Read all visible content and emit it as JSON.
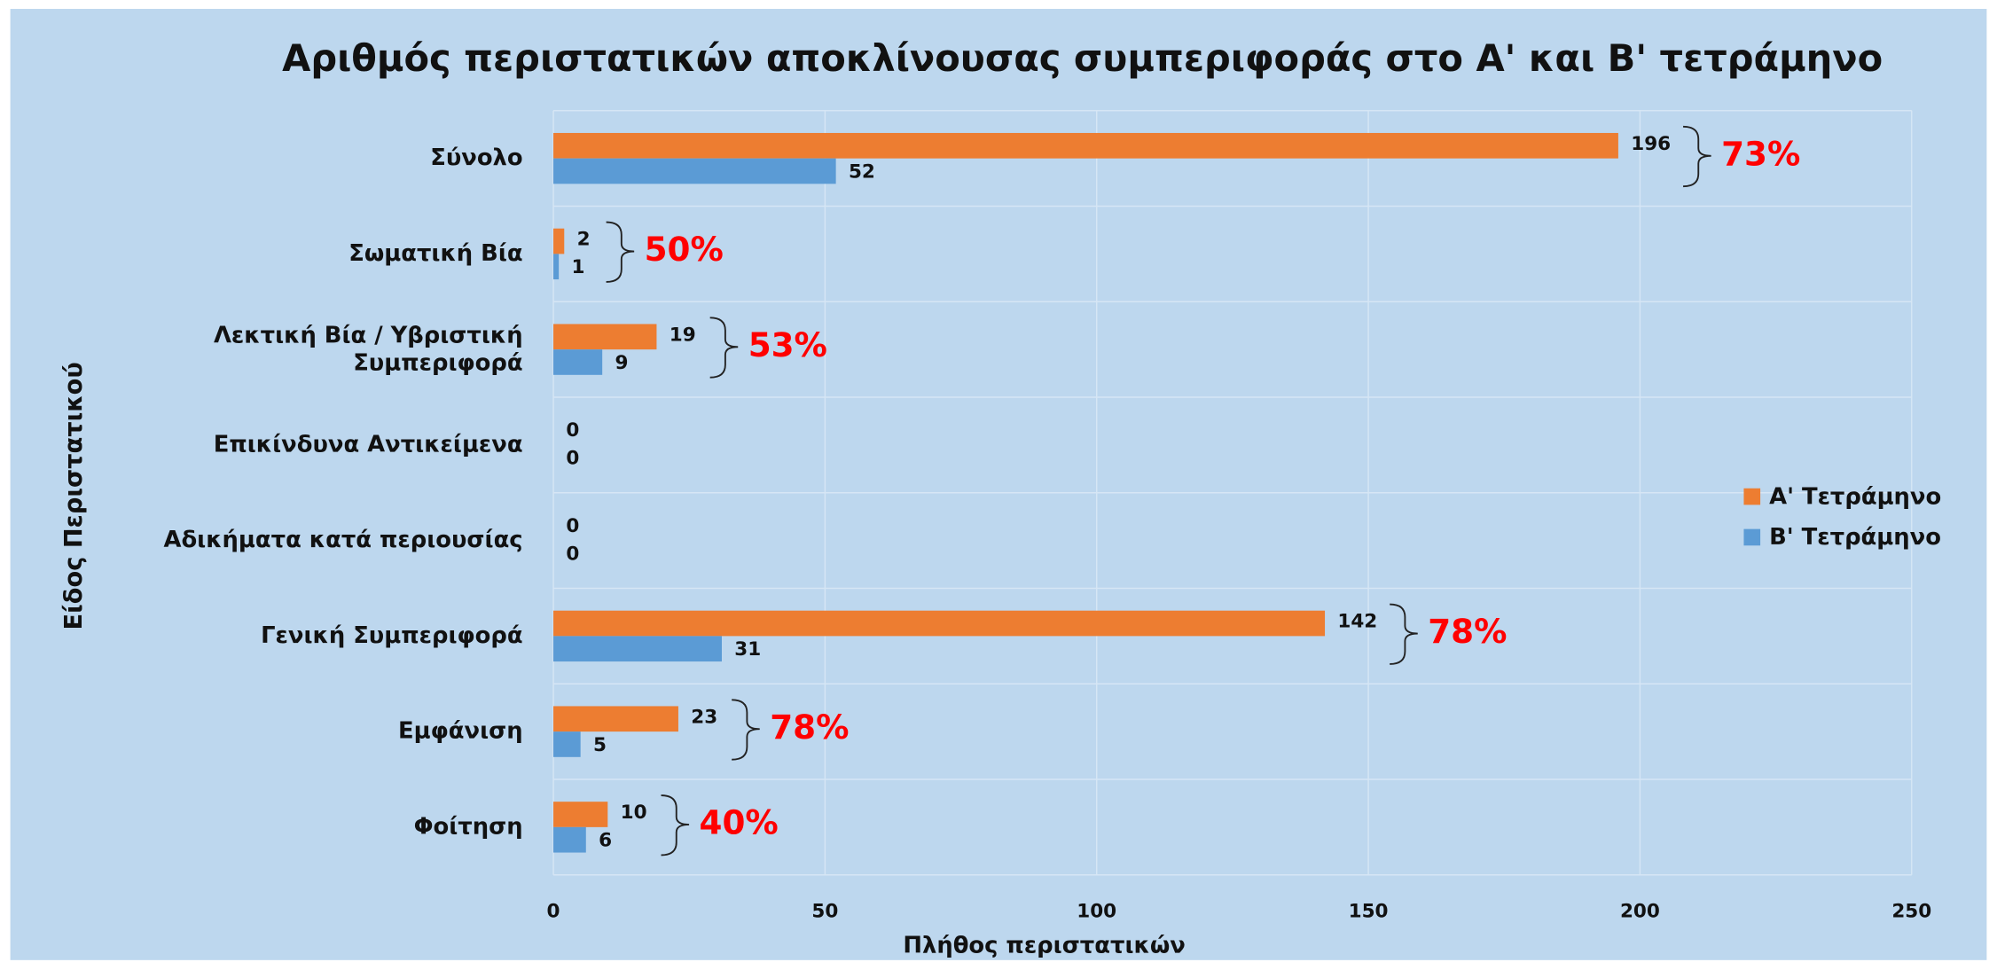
{
  "chart_data": {
    "type": "hbar",
    "title": "Αριθμός περιστατικών αποκλίνουσας συμπεριφοράς στο Α' και Β' τετράμηνο",
    "xlabel": "Πλήθος περιστατικών",
    "ylabel": "Είδος Περιστατικού",
    "categories": [
      "Σύνολο",
      "Σωματική Βία",
      "Λεκτική Βία / Υβριστική\nΣυμπεριφορά",
      "Επικίνδυνα Αντικείμενα",
      "Αδικήματα κατά περιουσίας",
      "Γενική Συμπεριφορά",
      "Εμφάνιση",
      "Φοίτηση"
    ],
    "series": [
      {
        "name": "Α' Τετράμηνο",
        "color": "#ed7d31",
        "values": [
          196,
          2,
          19,
          0,
          0,
          142,
          23,
          10
        ]
      },
      {
        "name": "Β' Τετράμηνο",
        "color": "#5b9bd5",
        "values": [
          52,
          1,
          9,
          0,
          0,
          31,
          5,
          6
        ]
      }
    ],
    "annotations": [
      "73%",
      "50%",
      "53%",
      null,
      null,
      "78%",
      "78%",
      "40%"
    ],
    "xlim": [
      0,
      250
    ],
    "xticks": [
      0,
      50,
      100,
      150,
      200,
      250
    ],
    "grid": true,
    "legend": "right"
  }
}
